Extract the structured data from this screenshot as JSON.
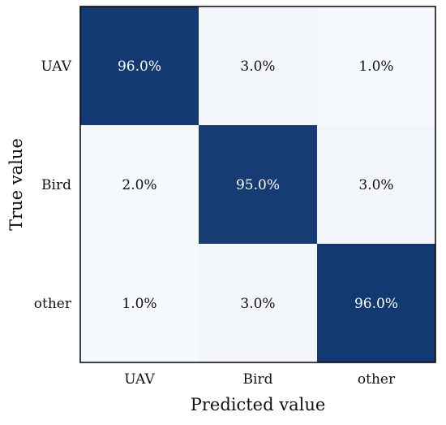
{
  "chart_data": {
    "type": "heatmap",
    "xlabel": "Predicted value",
    "ylabel": "True value",
    "x_categories": [
      "UAV",
      "Bird",
      "other"
    ],
    "y_categories": [
      "UAV",
      "Bird",
      "other"
    ],
    "values": [
      [
        96.0,
        3.0,
        1.0
      ],
      [
        2.0,
        95.0,
        3.0
      ],
      [
        1.0,
        3.0,
        96.0
      ]
    ],
    "cell_labels": [
      [
        "96.0%",
        "3.0%",
        "1.0%"
      ],
      [
        "2.0%",
        "95.0%",
        "3.0%"
      ],
      [
        "1.0%",
        "3.0%",
        "96.0%"
      ]
    ],
    "colormap": "Blues",
    "color_low": "#f7fbff",
    "color_high": "#08306b",
    "vmin": 0,
    "vmax": 100,
    "grid": false,
    "legend": "none"
  }
}
